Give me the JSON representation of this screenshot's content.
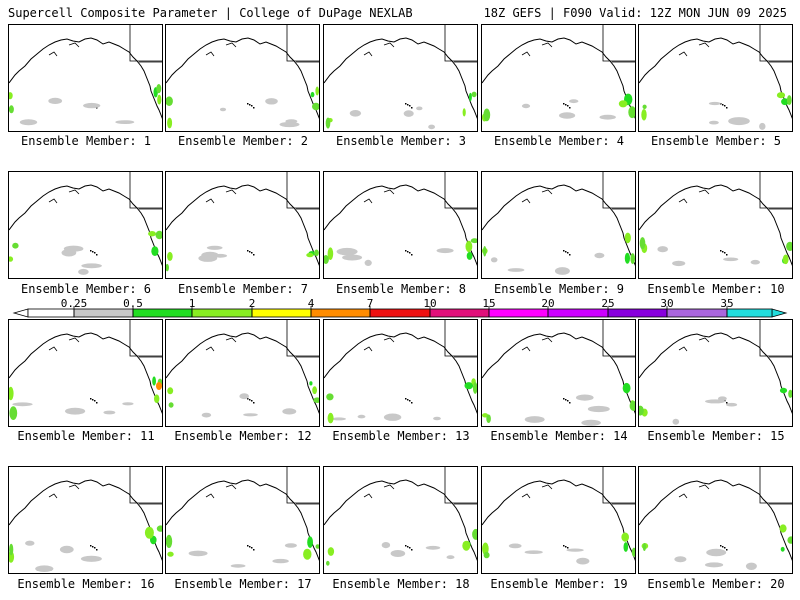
{
  "header": {
    "left": "Supercell Composite Parameter | College of DuPage NEXLAB",
    "right": "18Z GEFS | F090 Valid: 12Z MON JUN 09 2025"
  },
  "panels": [
    {
      "label": "Ensemble Member: 1"
    },
    {
      "label": "Ensemble Member: 2"
    },
    {
      "label": "Ensemble Member: 3"
    },
    {
      "label": "Ensemble Member: 4"
    },
    {
      "label": "Ensemble Member: 5"
    },
    {
      "label": "Ensemble Member: 6"
    },
    {
      "label": "Ensemble Member: 7"
    },
    {
      "label": "Ensemble Member: 8"
    },
    {
      "label": "Ensemble Member: 9"
    },
    {
      "label": "Ensemble Member: 10"
    },
    {
      "label": "Ensemble Member: 11"
    },
    {
      "label": "Ensemble Member: 12"
    },
    {
      "label": "Ensemble Member: 13"
    },
    {
      "label": "Ensemble Member: 14"
    },
    {
      "label": "Ensemble Member: 15"
    },
    {
      "label": "Ensemble Member: 16"
    },
    {
      "label": "Ensemble Member: 17"
    },
    {
      "label": "Ensemble Member: 18"
    },
    {
      "label": "Ensemble Member: 19"
    },
    {
      "label": "Ensemble Member: 20"
    }
  ],
  "colorbar": {
    "ticks": [
      "0.25",
      "0.5",
      "1",
      "2",
      "4",
      "7",
      "10",
      "15",
      "20",
      "25",
      "30",
      "35"
    ],
    "colors": [
      "#ffffff",
      "#c8c8c8",
      "#22dd22",
      "#88ee22",
      "#ffff00",
      "#ff8c00",
      "#ee1111",
      "#e0107a",
      "#ff00ff",
      "#cc00ff",
      "#8800dd",
      "#aa66dd",
      "#22dddd"
    ]
  }
}
